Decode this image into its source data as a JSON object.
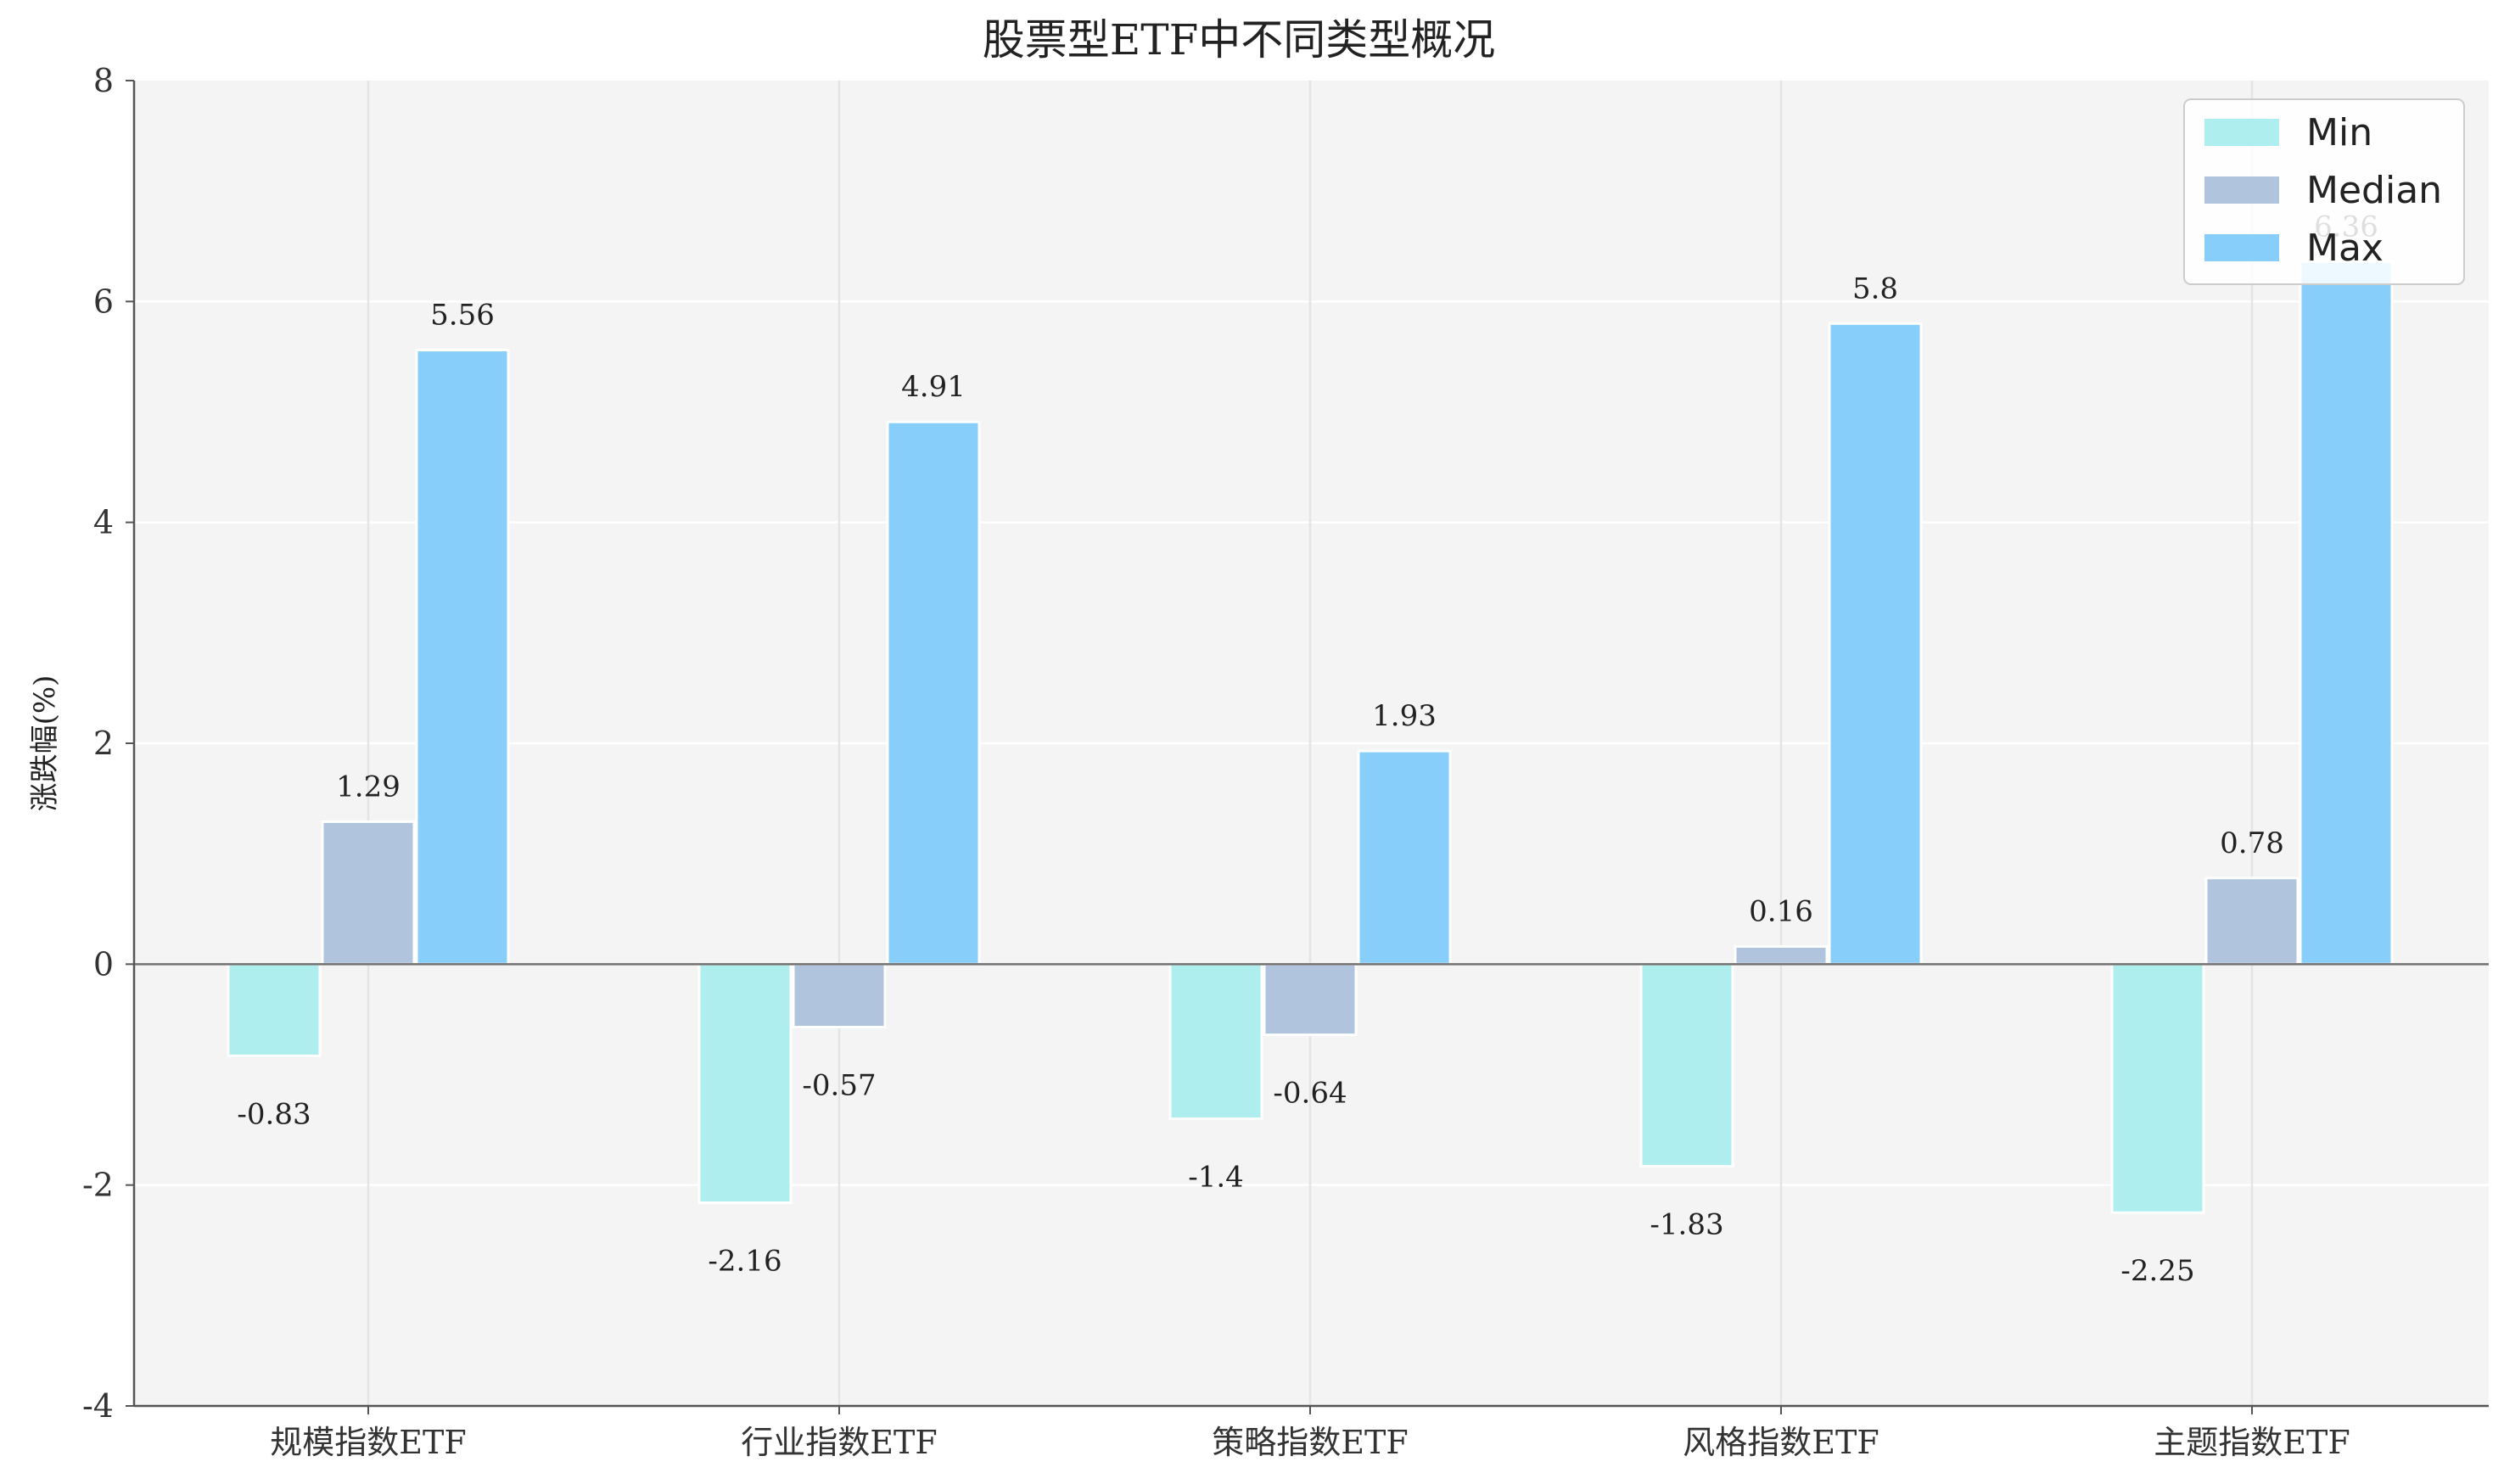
{
  "chart_data": {
    "type": "bar",
    "title": "股票型ETF中不同类型概况",
    "ylabel": "涨跌幅(%)",
    "xlabel": "",
    "ylim": [
      -4,
      8
    ],
    "yticks": [
      -4,
      -2,
      0,
      2,
      4,
      6,
      8
    ],
    "grid": true,
    "legend_position": "top-right",
    "categories": [
      "规模指数ETF",
      "行业指数ETF",
      "策略指数ETF",
      "风格指数ETF",
      "主题指数ETF"
    ],
    "series": [
      {
        "name": "Min",
        "color": "#AFEEEE",
        "values": [
          -0.83,
          -2.16,
          -1.4,
          -1.83,
          -2.25
        ],
        "labels": [
          "-0.83",
          "-2.16",
          "-1.4",
          "-1.83",
          "-2.25"
        ]
      },
      {
        "name": "Median",
        "color": "#B0C4DE",
        "values": [
          1.29,
          -0.57,
          -0.64,
          0.16,
          0.78
        ],
        "labels": [
          "1.29",
          "-0.57",
          "-0.64",
          "0.16",
          "0.78"
        ]
      },
      {
        "name": "Max",
        "color": "#87CEFA",
        "values": [
          5.56,
          4.91,
          1.93,
          5.8,
          6.36
        ],
        "labels": [
          "5.56",
          "4.91",
          "1.93",
          "5.8",
          "6.36"
        ]
      }
    ],
    "colors": {
      "plot_background": "#F4F4F4",
      "grid": "#FFFFFF",
      "axis": "#555555",
      "zero_line": "#707070"
    }
  }
}
